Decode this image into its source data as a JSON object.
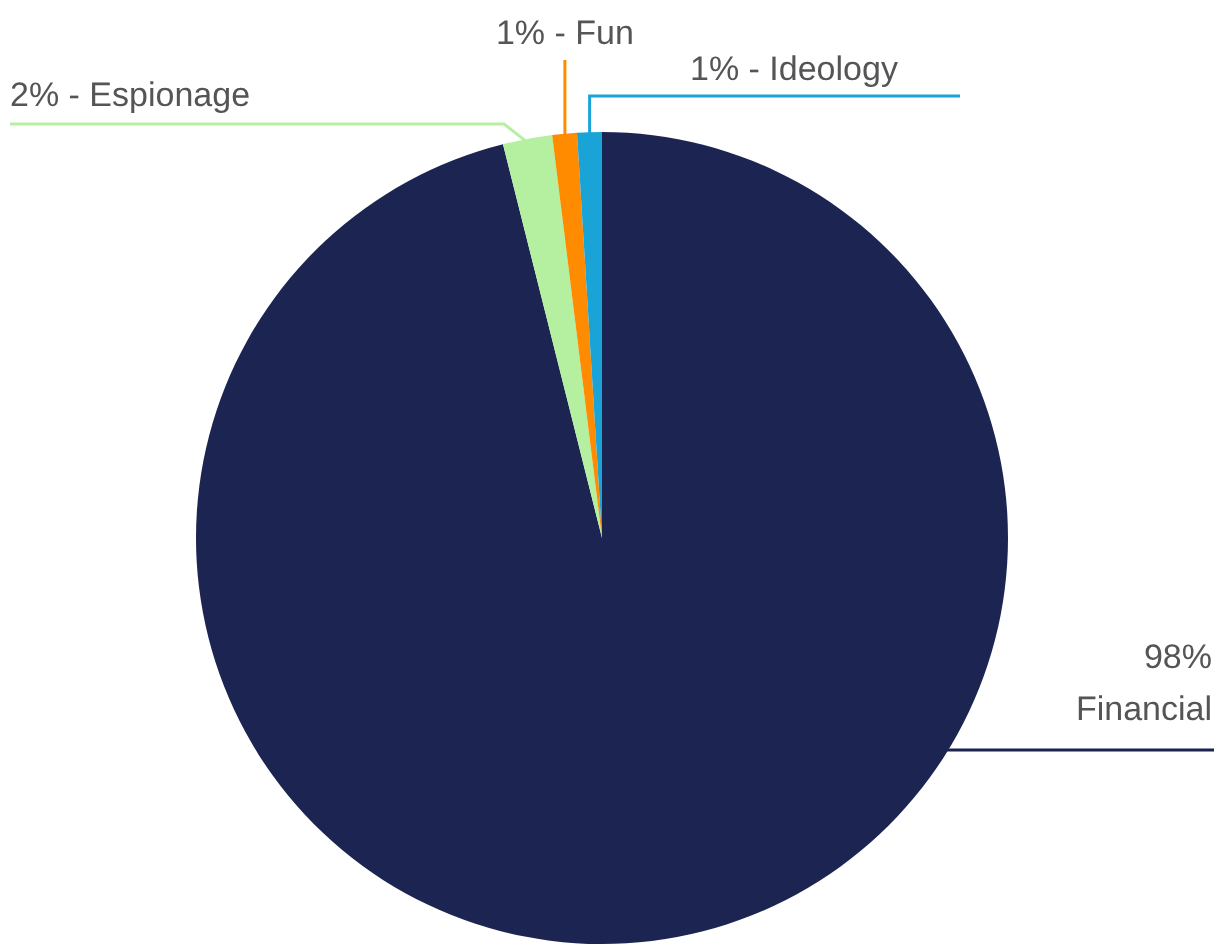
{
  "chart_data": {
    "type": "pie",
    "categories": [
      "Financial",
      "Espionage",
      "Fun",
      "Ideology"
    ],
    "values": [
      98,
      2,
      1,
      1
    ],
    "value_labels": [
      "98%",
      "2% -",
      "1% -",
      "1% -"
    ],
    "colors": [
      "#1c2551",
      "#b5f0a0",
      "#ff8c00",
      "#1aa3d6"
    ]
  }
}
